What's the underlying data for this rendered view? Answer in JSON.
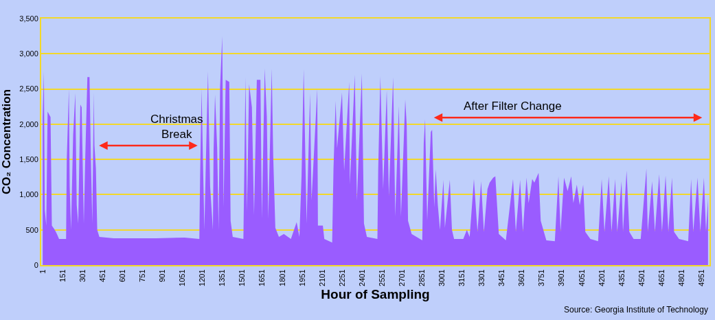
{
  "chart_data": {
    "type": "area",
    "xlabel": "Hour of Sampling",
    "ylabel": "CO₂ Concentration",
    "x": [
      1,
      10,
      17,
      28,
      38,
      60,
      70,
      92,
      108,
      124,
      177,
      182,
      198,
      204,
      214,
      230,
      246,
      257,
      268,
      284,
      294,
      310,
      321,
      337,
      353,
      363,
      374,
      385,
      390,
      401,
      411,
      427,
      534,
      854,
      1067,
      1178,
      1184,
      1195,
      1205,
      1216,
      1227,
      1243,
      1259,
      1280,
      1285,
      1296,
      1312,
      1323,
      1334,
      1350,
      1360,
      1376,
      1403,
      1413,
      1429,
      1509,
      1525,
      1536,
      1552,
      1573,
      1589,
      1610,
      1637,
      1648,
      1669,
      1685,
      1696,
      1722,
      1733,
      1749,
      1776,
      1813,
      1866,
      1909,
      1930,
      1946,
      1962,
      1984,
      2010,
      2021,
      2064,
      2069,
      2106,
      2117,
      2176,
      2186,
      2202,
      2213,
      2250,
      2266,
      2304,
      2309,
      2346,
      2362,
      2399,
      2415,
      2437,
      2516,
      2522,
      2538,
      2559,
      2586,
      2602,
      2634,
      2650,
      2677,
      2693,
      2725,
      2736,
      2746,
      2773,
      2810,
      2853,
      2864,
      2874,
      2890,
      2917,
      2927,
      2943,
      2954,
      2970,
      2986,
      3012,
      3023,
      3060,
      3076,
      3092,
      3161,
      3188,
      3209,
      3241,
      3268,
      3295,
      3316,
      3343,
      3359,
      3386,
      3402,
      3428,
      3481,
      3535,
      3556,
      3588,
      3609,
      3636,
      3652,
      3679,
      3695,
      3727,
      3743,
      3785,
      3849,
      3876,
      3892,
      3918,
      3945,
      3972,
      3988,
      4014,
      4036,
      4062,
      4078,
      4116,
      4174,
      4201,
      4222,
      4254,
      4275,
      4302,
      4318,
      4350,
      4361,
      4388,
      4409,
      4441,
      4494,
      4537,
      4547,
      4580,
      4601,
      4633,
      4654,
      4681,
      4702,
      4729,
      4745,
      4782,
      4851,
      4873,
      4889,
      4921,
      4942,
      4969,
      4985,
      5000
    ],
    "values": [
      2100,
      2750,
      780,
      560,
      2180,
      2100,
      560,
      500,
      440,
      370,
      370,
      1500,
      2500,
      1120,
      500,
      1850,
      2440,
      850,
      590,
      2280,
      2240,
      590,
      1530,
      2670,
      2670,
      1530,
      590,
      2450,
      1700,
      1370,
      500,
      400,
      380,
      380,
      390,
      370,
      1270,
      2500,
      1500,
      500,
      1460,
      2750,
      1120,
      500,
      1630,
      2420,
      1660,
      500,
      2530,
      3250,
      820,
      2630,
      2600,
      630,
      400,
      370,
      2670,
      760,
      2570,
      2240,
      710,
      2630,
      2630,
      660,
      2790,
      2110,
      660,
      2790,
      1550,
      530,
      400,
      440,
      370,
      610,
      400,
      1270,
      2780,
      590,
      2440,
      920,
      2500,
      560,
      560,
      370,
      320,
      1370,
      2330,
      1660,
      2450,
      1340,
      2600,
      1140,
      2700,
      920,
      2720,
      590,
      400,
      370,
      1370,
      2680,
      1080,
      2480,
      980,
      2670,
      690,
      2260,
      690,
      2350,
      1990,
      630,
      440,
      400,
      350,
      1730,
      2070,
      630,
      1890,
      1920,
      820,
      1360,
      850,
      500,
      1210,
      530,
      1210,
      500,
      370,
      370,
      500,
      400,
      1220,
      470,
      1190,
      470,
      1080,
      1170,
      1240,
      1260,
      440,
      350,
      1220,
      470,
      1210,
      470,
      1240,
      880,
      1220,
      1170,
      1310,
      630,
      350,
      340,
      1260,
      470,
      1240,
      1050,
      1260,
      880,
      1140,
      850,
      1140,
      470,
      370,
      340,
      1220,
      470,
      1260,
      470,
      1220,
      470,
      1190,
      470,
      1340,
      470,
      370,
      370,
      1370,
      470,
      1190,
      470,
      1290,
      470,
      1270,
      470,
      1240,
      470,
      370,
      340,
      1220,
      470,
      1240,
      470,
      1240,
      470,
      950
    ],
    "color": "#9a5cff",
    "xlim": [
      -10,
      5011
    ],
    "xticks": [
      1,
      151,
      301,
      451,
      601,
      751,
      901,
      1051,
      1201,
      1351,
      1501,
      1651,
      1801,
      1951,
      2101,
      2251,
      2401,
      2551,
      2701,
      2851,
      3001,
      3151,
      3301,
      3451,
      3601,
      3751,
      3901,
      4051,
      4201,
      4351,
      4501,
      4651,
      4801,
      4951
    ],
    "ylim": [
      0,
      3500
    ],
    "yticks": [
      0,
      500,
      {
        "value": 1000,
        "label": "1,000"
      },
      {
        "value": 1500,
        "label": "1,500"
      },
      {
        "value": 2000,
        "label": "2,000"
      },
      {
        "value": 2500,
        "label": "2,500"
      },
      {
        "value": 3000,
        "label": "3,000"
      },
      {
        "value": 3500,
        "label": "3,500"
      }
    ],
    "grid": "y",
    "legend": false,
    "annotations": [
      "Christmas\nBreak",
      "After Filter Change",
      "Source: Georgia Institute of Technology"
    ]
  }
}
